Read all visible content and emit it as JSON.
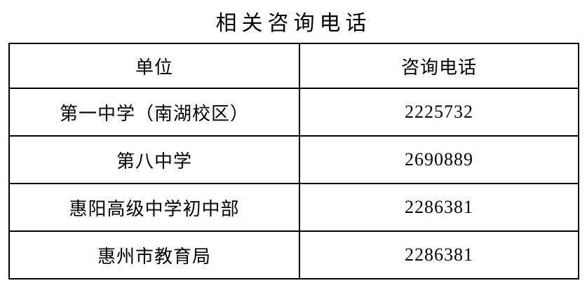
{
  "title": "相关咨询电话",
  "table": {
    "headers": {
      "unit": "单位",
      "phone": "咨询电话"
    },
    "rows": [
      {
        "unit": "第一中学（南湖校区）",
        "phone": "2225732"
      },
      {
        "unit": "第八中学",
        "phone": "2690889"
      },
      {
        "unit": "惠阳高级中学初中部",
        "phone": "2286381"
      },
      {
        "unit": "惠州市教育局",
        "phone": "2286381"
      }
    ]
  },
  "colors": {
    "text": "#000000",
    "border": "#000000",
    "background": "#ffffff"
  }
}
